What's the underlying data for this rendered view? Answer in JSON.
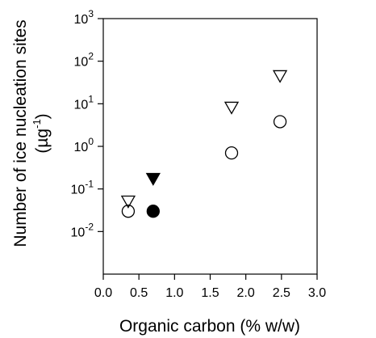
{
  "chart_data": {
    "type": "scatter",
    "title": "",
    "xlabel": "Organic carbon (% w/w)",
    "ylabel_line1": "Number of ice nucleation sites",
    "ylabel_line2_prefix": "(µg",
    "ylabel_line2_exponent": "-1",
    "ylabel_line2_suffix": ")",
    "xlim": [
      0.0,
      3.0
    ],
    "ylim": [
      0.001,
      1000
    ],
    "y_scale": "log",
    "grid": false,
    "x_ticks": [
      0.0,
      0.5,
      1.0,
      1.5,
      2.0,
      2.5,
      3.0
    ],
    "x_tick_labels": [
      "0.0",
      "0.5",
      "1.0",
      "1.5",
      "2.0",
      "2.5",
      "3.0"
    ],
    "y_ticks": [
      0.01,
      0.1,
      1,
      10,
      100,
      1000
    ],
    "y_tick_labels": [
      {
        "base": "10",
        "exp": "-2"
      },
      {
        "base": "10",
        "exp": "-1"
      },
      {
        "base": "10",
        "exp": "0"
      },
      {
        "base": "10",
        "exp": "1"
      },
      {
        "base": "10",
        "exp": "2"
      },
      {
        "base": "10",
        "exp": "3"
      }
    ],
    "series": [
      {
        "marker": "triangle-down-open",
        "color": "#000000",
        "points": [
          {
            "x": 0.35,
            "y": 0.05
          },
          {
            "x": 1.8,
            "y": 8.0
          },
          {
            "x": 2.48,
            "y": 44
          }
        ]
      },
      {
        "marker": "circle-open",
        "color": "#000000",
        "points": [
          {
            "x": 0.35,
            "y": 0.03
          },
          {
            "x": 1.8,
            "y": 0.7
          },
          {
            "x": 2.48,
            "y": 3.8
          }
        ]
      },
      {
        "marker": "triangle-down-filled",
        "color": "#000000",
        "points": [
          {
            "x": 0.7,
            "y": 0.17
          }
        ]
      },
      {
        "marker": "circle-filled",
        "color": "#000000",
        "points": [
          {
            "x": 0.7,
            "y": 0.03
          }
        ]
      }
    ]
  }
}
